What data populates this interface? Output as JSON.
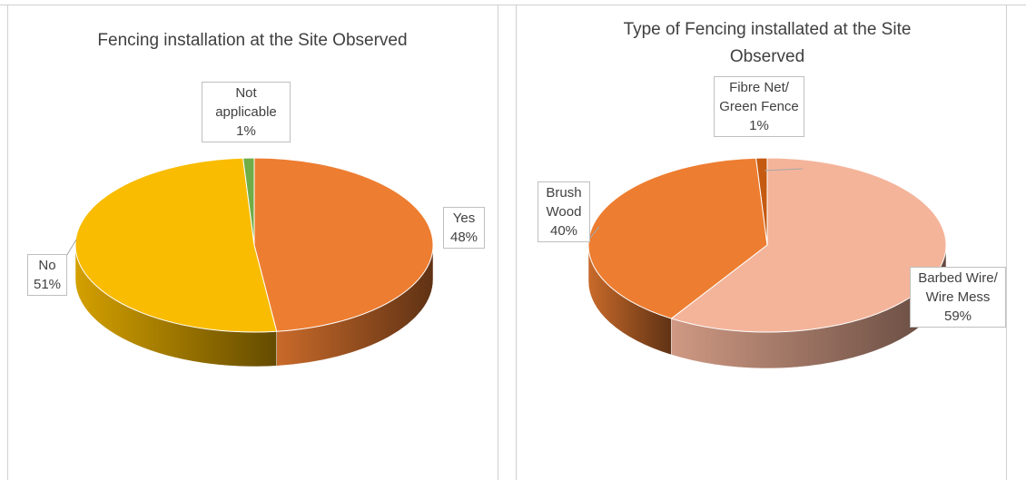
{
  "chart_data": [
    {
      "type": "pie3d",
      "title": "Fencing installation at the Site Observed",
      "categories": [
        "Yes",
        "No",
        "Not applicable"
      ],
      "values": [
        48,
        51,
        1
      ],
      "value_labels": [
        "48%",
        "51%",
        "1%"
      ],
      "colors": [
        "#ED7D31",
        "#F9BC00",
        "#70AD47"
      ]
    },
    {
      "type": "pie3d",
      "title": "Type of Fencing installated at the Site Observed",
      "categories": [
        "Barbed Wire/ Wire Mess",
        "Brush Wood",
        "Fibre Net/ Green Fence"
      ],
      "values": [
        59,
        40,
        1
      ],
      "value_labels": [
        "59%",
        "40%",
        "1%"
      ],
      "colors": [
        "#F4B49A",
        "#ED7D31",
        "#C55A11"
      ]
    }
  ]
}
